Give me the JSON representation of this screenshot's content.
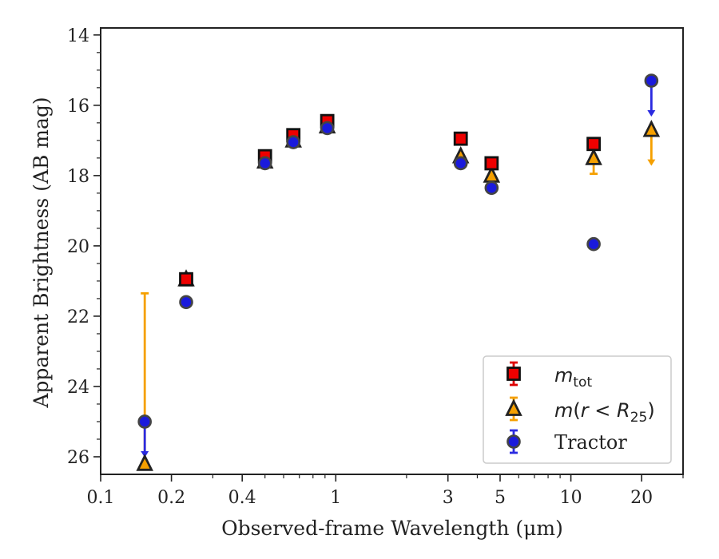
{
  "chart_data": {
    "type": "scatter",
    "xlabel": "Observed-frame Wavelength (μm)",
    "ylabel": "Apparent Brightness (AB mag)",
    "xscale": "log",
    "xlim": [
      0.1,
      30
    ],
    "ylim": [
      26.5,
      13.8
    ],
    "y_inverted": true,
    "x_ticks": [
      {
        "value": 0.1,
        "label": "0.1"
      },
      {
        "value": 0.2,
        "label": "0.2"
      },
      {
        "value": 0.4,
        "label": "0.4"
      },
      {
        "value": 1,
        "label": "1"
      },
      {
        "value": 3,
        "label": "3"
      },
      {
        "value": 5,
        "label": "5"
      },
      {
        "value": 10,
        "label": "10"
      },
      {
        "value": 20,
        "label": "20"
      }
    ],
    "y_ticks": [
      14,
      16,
      18,
      20,
      22,
      24,
      26
    ],
    "legend_position": "lower-right",
    "series": [
      {
        "name": "m_tot",
        "legend_label": "m_tot",
        "marker": "square",
        "color": "#ee0000",
        "edge": "#111111",
        "errorbar_color": "#dd0000",
        "points": [
          {
            "x": 0.231,
            "y": 20.95
          },
          {
            "x": 0.5,
            "y": 17.45
          },
          {
            "x": 0.66,
            "y": 16.85
          },
          {
            "x": 0.92,
            "y": 16.45
          },
          {
            "x": 3.4,
            "y": 16.95
          },
          {
            "x": 4.6,
            "y": 17.65
          },
          {
            "x": 12.5,
            "y": 17.1
          }
        ]
      },
      {
        "name": "m(r<R25)",
        "legend_label": "m(r<R25)",
        "marker": "triangle",
        "color": "#f5a000",
        "edge": "#222222",
        "errorbar_color": "#f5a000",
        "points": [
          {
            "x": 0.154,
            "y": 26.2,
            "err_up": 4.85
          },
          {
            "x": 0.231,
            "y": 20.95
          },
          {
            "x": 0.5,
            "y": 17.6
          },
          {
            "x": 0.66,
            "y": 17.0
          },
          {
            "x": 0.92,
            "y": 16.6
          },
          {
            "x": 3.4,
            "y": 17.45
          },
          {
            "x": 4.6,
            "y": 18.0
          },
          {
            "x": 12.5,
            "y": 17.5,
            "err": 0.45
          },
          {
            "x": 22,
            "y": 16.7,
            "upper_limit": true
          }
        ]
      },
      {
        "name": "Tractor",
        "legend_label": "Tractor",
        "marker": "circle",
        "color": "#1a1adc",
        "edge": "#444444",
        "errorbar_color": "#2a2ae0",
        "points": [
          {
            "x": 0.154,
            "y": 25.0,
            "upper_limit": true
          },
          {
            "x": 0.231,
            "y": 21.6
          },
          {
            "x": 0.5,
            "y": 17.65
          },
          {
            "x": 0.66,
            "y": 17.05
          },
          {
            "x": 0.92,
            "y": 16.65
          },
          {
            "x": 3.4,
            "y": 17.65
          },
          {
            "x": 4.6,
            "y": 18.35
          },
          {
            "x": 12.5,
            "y": 19.95
          },
          {
            "x": 22,
            "y": 15.3,
            "upper_limit": true
          }
        ]
      }
    ]
  }
}
